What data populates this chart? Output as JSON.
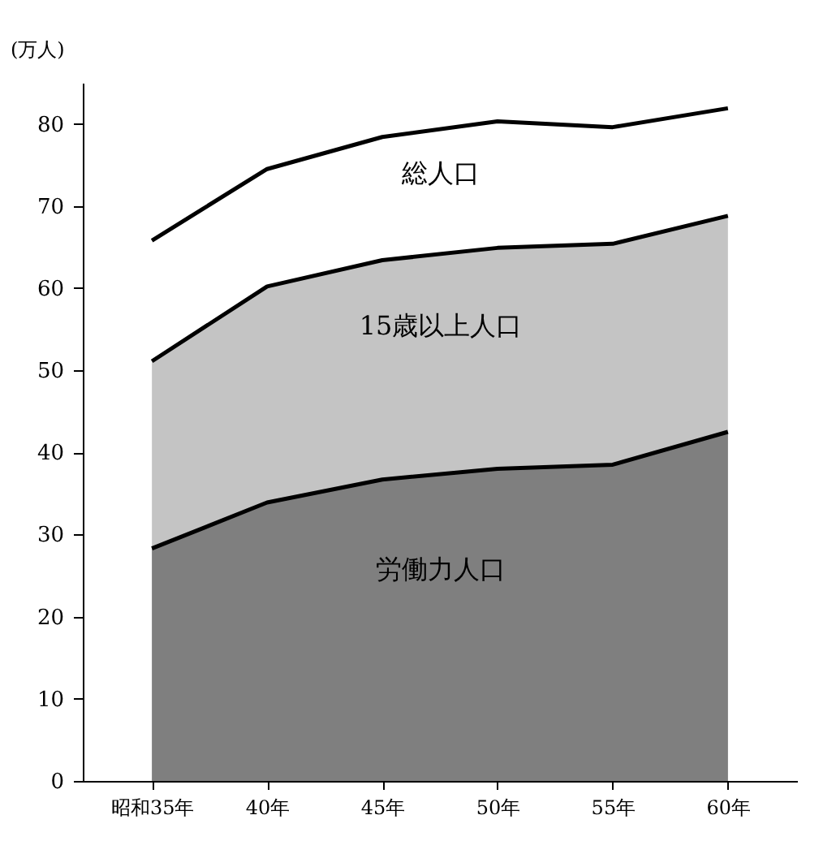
{
  "chart_data": {
    "type": "area",
    "ylabel": "(万人)",
    "categories": [
      "昭和35年",
      "40年",
      "45年",
      "50年",
      "55年",
      "60年"
    ],
    "series": [
      {
        "name": "15歳以上人口",
        "color": "#c4c4c4",
        "values": [
          51.1,
          60.2,
          63.4,
          64.9,
          65.4,
          68.8
        ]
      },
      {
        "name": "労働力人口",
        "color": "#7f7f7f",
        "values": [
          28.3,
          33.9,
          36.7,
          38.0,
          38.5,
          42.5
        ]
      },
      {
        "name": "総人口",
        "type": "line",
        "color": "#000000",
        "values": [
          65.8,
          74.5,
          78.4,
          80.3,
          79.6,
          81.9
        ]
      }
    ],
    "ylim": [
      0,
      85
    ],
    "yticks": [
      0,
      10,
      20,
      30,
      40,
      50,
      60,
      70,
      80
    ],
    "grid": false,
    "legend": false,
    "line_style": "solid",
    "marker": "none"
  }
}
